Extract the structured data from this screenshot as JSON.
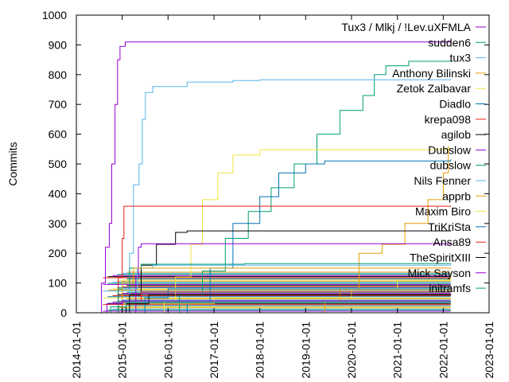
{
  "chart_data": {
    "type": "line",
    "title": "",
    "xlabel": "",
    "ylabel": "Commits",
    "xlim": [
      "2014-01-01",
      "2023-01-01"
    ],
    "ylim": [
      0,
      1000
    ],
    "xticks": [
      "2014-01-01",
      "2015-01-01",
      "2016-01-01",
      "2017-01-01",
      "2018-01-01",
      "2019-01-01",
      "2020-01-01",
      "2021-01-01",
      "2022-01-01",
      "2023-01-01"
    ],
    "yticks": [
      0,
      100,
      200,
      300,
      400,
      500,
      600,
      700,
      800,
      900,
      1000
    ],
    "grid": false,
    "legend_position": "top-right",
    "series": [
      {
        "name": "Tux3 / Mlkj / !Lev.uXFMLA",
        "color": "#9400d3",
        "points": [
          [
            "2014-07-01",
            0
          ],
          [
            "2014-07-20",
            100
          ],
          [
            "2014-08-20",
            220
          ],
          [
            "2014-09-20",
            300
          ],
          [
            "2014-10-10",
            500
          ],
          [
            "2014-11-05",
            700
          ],
          [
            "2014-11-25",
            850
          ],
          [
            "2014-12-15",
            895
          ],
          [
            "2015-01-25",
            910
          ],
          [
            "2022-03-01",
            912
          ]
        ]
      },
      {
        "name": "sudden6",
        "color": "#009e73",
        "points": [
          [
            "2015-09-01",
            0
          ],
          [
            "2016-04-01",
            60
          ],
          [
            "2016-10-01",
            140
          ],
          [
            "2017-04-01",
            250
          ],
          [
            "2017-10-01",
            340
          ],
          [
            "2018-04-01",
            420
          ],
          [
            "2018-10-01",
            500
          ],
          [
            "2019-04-01",
            600
          ],
          [
            "2019-10-01",
            680
          ],
          [
            "2020-04-01",
            730
          ],
          [
            "2020-07-01",
            800
          ],
          [
            "2020-10-01",
            830
          ],
          [
            "2021-04-01",
            845
          ],
          [
            "2022-03-01",
            848
          ]
        ]
      },
      {
        "name": "tux3",
        "color": "#56b4e9",
        "points": [
          [
            "2015-02-10",
            0
          ],
          [
            "2015-03-01",
            200
          ],
          [
            "2015-04-01",
            430
          ],
          [
            "2015-05-15",
            500
          ],
          [
            "2015-06-10",
            650
          ],
          [
            "2015-07-05",
            740
          ],
          [
            "2015-09-01",
            760
          ],
          [
            "2016-06-01",
            775
          ],
          [
            "2017-06-01",
            780
          ],
          [
            "2018-01-01",
            783
          ],
          [
            "2022-03-01",
            785
          ]
        ]
      },
      {
        "name": "Anthony Bilinski",
        "color": "#e69f00",
        "points": [
          [
            "2018-06-01",
            0
          ],
          [
            "2019-06-01",
            40
          ],
          [
            "2019-10-01",
            80
          ],
          [
            "2020-03-01",
            200
          ],
          [
            "2020-09-01",
            230
          ],
          [
            "2021-03-01",
            300
          ],
          [
            "2021-09-01",
            380
          ],
          [
            "2022-01-01",
            470
          ],
          [
            "2022-02-10",
            560
          ]
        ]
      },
      {
        "name": "Zetok Zalbavar",
        "color": "#f0e442",
        "points": [
          [
            "2015-06-01",
            0
          ],
          [
            "2015-12-01",
            40
          ],
          [
            "2016-03-01",
            120
          ],
          [
            "2016-07-01",
            230
          ],
          [
            "2016-10-01",
            380
          ],
          [
            "2017-02-01",
            470
          ],
          [
            "2017-06-01",
            530
          ],
          [
            "2018-01-01",
            548
          ],
          [
            "2022-03-01",
            550
          ]
        ]
      },
      {
        "name": "Diadlo",
        "color": "#0072b2",
        "points": [
          [
            "2015-10-01",
            0
          ],
          [
            "2016-06-01",
            40
          ],
          [
            "2016-12-01",
            150
          ],
          [
            "2017-06-01",
            300
          ],
          [
            "2018-01-01",
            390
          ],
          [
            "2018-06-01",
            470
          ],
          [
            "2019-01-01",
            500
          ],
          [
            "2019-06-01",
            510
          ],
          [
            "2022-03-01",
            515
          ]
        ]
      },
      {
        "name": "krepa098",
        "color": "#e51e10",
        "points": [
          [
            "2014-11-01",
            0
          ],
          [
            "2014-12-01",
            120
          ],
          [
            "2015-01-01",
            250
          ],
          [
            "2015-01-15",
            358
          ],
          [
            "2022-03-01",
            360
          ]
        ]
      },
      {
        "name": "agilob",
        "color": "#000000",
        "points": [
          [
            "2014-10-01",
            0
          ],
          [
            "2015-03-01",
            60
          ],
          [
            "2015-06-01",
            160
          ],
          [
            "2015-10-01",
            230
          ],
          [
            "2016-03-01",
            270
          ],
          [
            "2016-06-01",
            275
          ],
          [
            "2022-03-01",
            277
          ]
        ]
      },
      {
        "name": "Dubslow",
        "color": "#9400d3",
        "points": [
          [
            "2015-04-01",
            0
          ],
          [
            "2015-04-20",
            120
          ],
          [
            "2015-05-10",
            220
          ],
          [
            "2015-06-01",
            232
          ],
          [
            "2022-03-01",
            233
          ]
        ]
      },
      {
        "name": "dubslow",
        "color": "#009e73",
        "points": [
          [
            "2014-10-01",
            0
          ],
          [
            "2014-12-01",
            80
          ],
          [
            "2015-03-01",
            150
          ],
          [
            "2015-06-01",
            163
          ],
          [
            "2017-09-01",
            165
          ],
          [
            "2022-03-01",
            166
          ]
        ]
      },
      {
        "name": "Nils Fenner",
        "color": "#56b4e9",
        "points": [
          [
            "2014-09-01",
            0
          ],
          [
            "2015-01-01",
            80
          ],
          [
            "2015-05-01",
            150
          ],
          [
            "2015-09-01",
            160
          ],
          [
            "2022-03-01",
            162
          ]
        ]
      },
      {
        "name": "apprb",
        "color": "#e69f00",
        "points": [
          [
            "2014-10-01",
            0
          ],
          [
            "2015-01-01",
            100
          ],
          [
            "2015-04-01",
            150
          ],
          [
            "2022-03-01",
            152
          ]
        ]
      },
      {
        "name": "Maxim Biro",
        "color": "#f0e442",
        "points": [
          [
            "2014-08-01",
            0
          ],
          [
            "2015-01-01",
            30
          ],
          [
            "2017-01-01",
            50
          ],
          [
            "2020-01-01",
            80
          ],
          [
            "2021-01-01",
            110
          ],
          [
            "2022-03-01",
            130
          ]
        ]
      },
      {
        "name": "TriKriSta",
        "color": "#0072b2",
        "points": [
          [
            "2015-05-01",
            0
          ],
          [
            "2015-07-01",
            50
          ],
          [
            "2016-01-01",
            80
          ],
          [
            "2022-03-01",
            82
          ]
        ]
      },
      {
        "name": "Ansa89",
        "color": "#e51e10",
        "points": [
          [
            "2014-09-01",
            0
          ],
          [
            "2015-01-01",
            40
          ],
          [
            "2015-06-01",
            70
          ],
          [
            "2022-03-01",
            72
          ]
        ]
      },
      {
        "name": "TheSpiritXIII",
        "color": "#000000",
        "points": [
          [
            "2014-10-01",
            0
          ],
          [
            "2015-02-01",
            30
          ],
          [
            "2015-08-01",
            60
          ],
          [
            "2022-03-01",
            62
          ]
        ]
      },
      {
        "name": "Mick Sayson",
        "color": "#9400d3",
        "points": [
          [
            "2014-07-01",
            0
          ],
          [
            "2014-09-01",
            30
          ],
          [
            "2015-01-01",
            40
          ],
          [
            "2022-03-01",
            40
          ]
        ]
      },
      {
        "name": "initramfs",
        "color": "#009e73",
        "points": [
          [
            "2014-08-01",
            0
          ],
          [
            "2014-10-01",
            20
          ],
          [
            "2015-02-01",
            35
          ],
          [
            "2022-03-01",
            36
          ]
        ]
      }
    ]
  }
}
